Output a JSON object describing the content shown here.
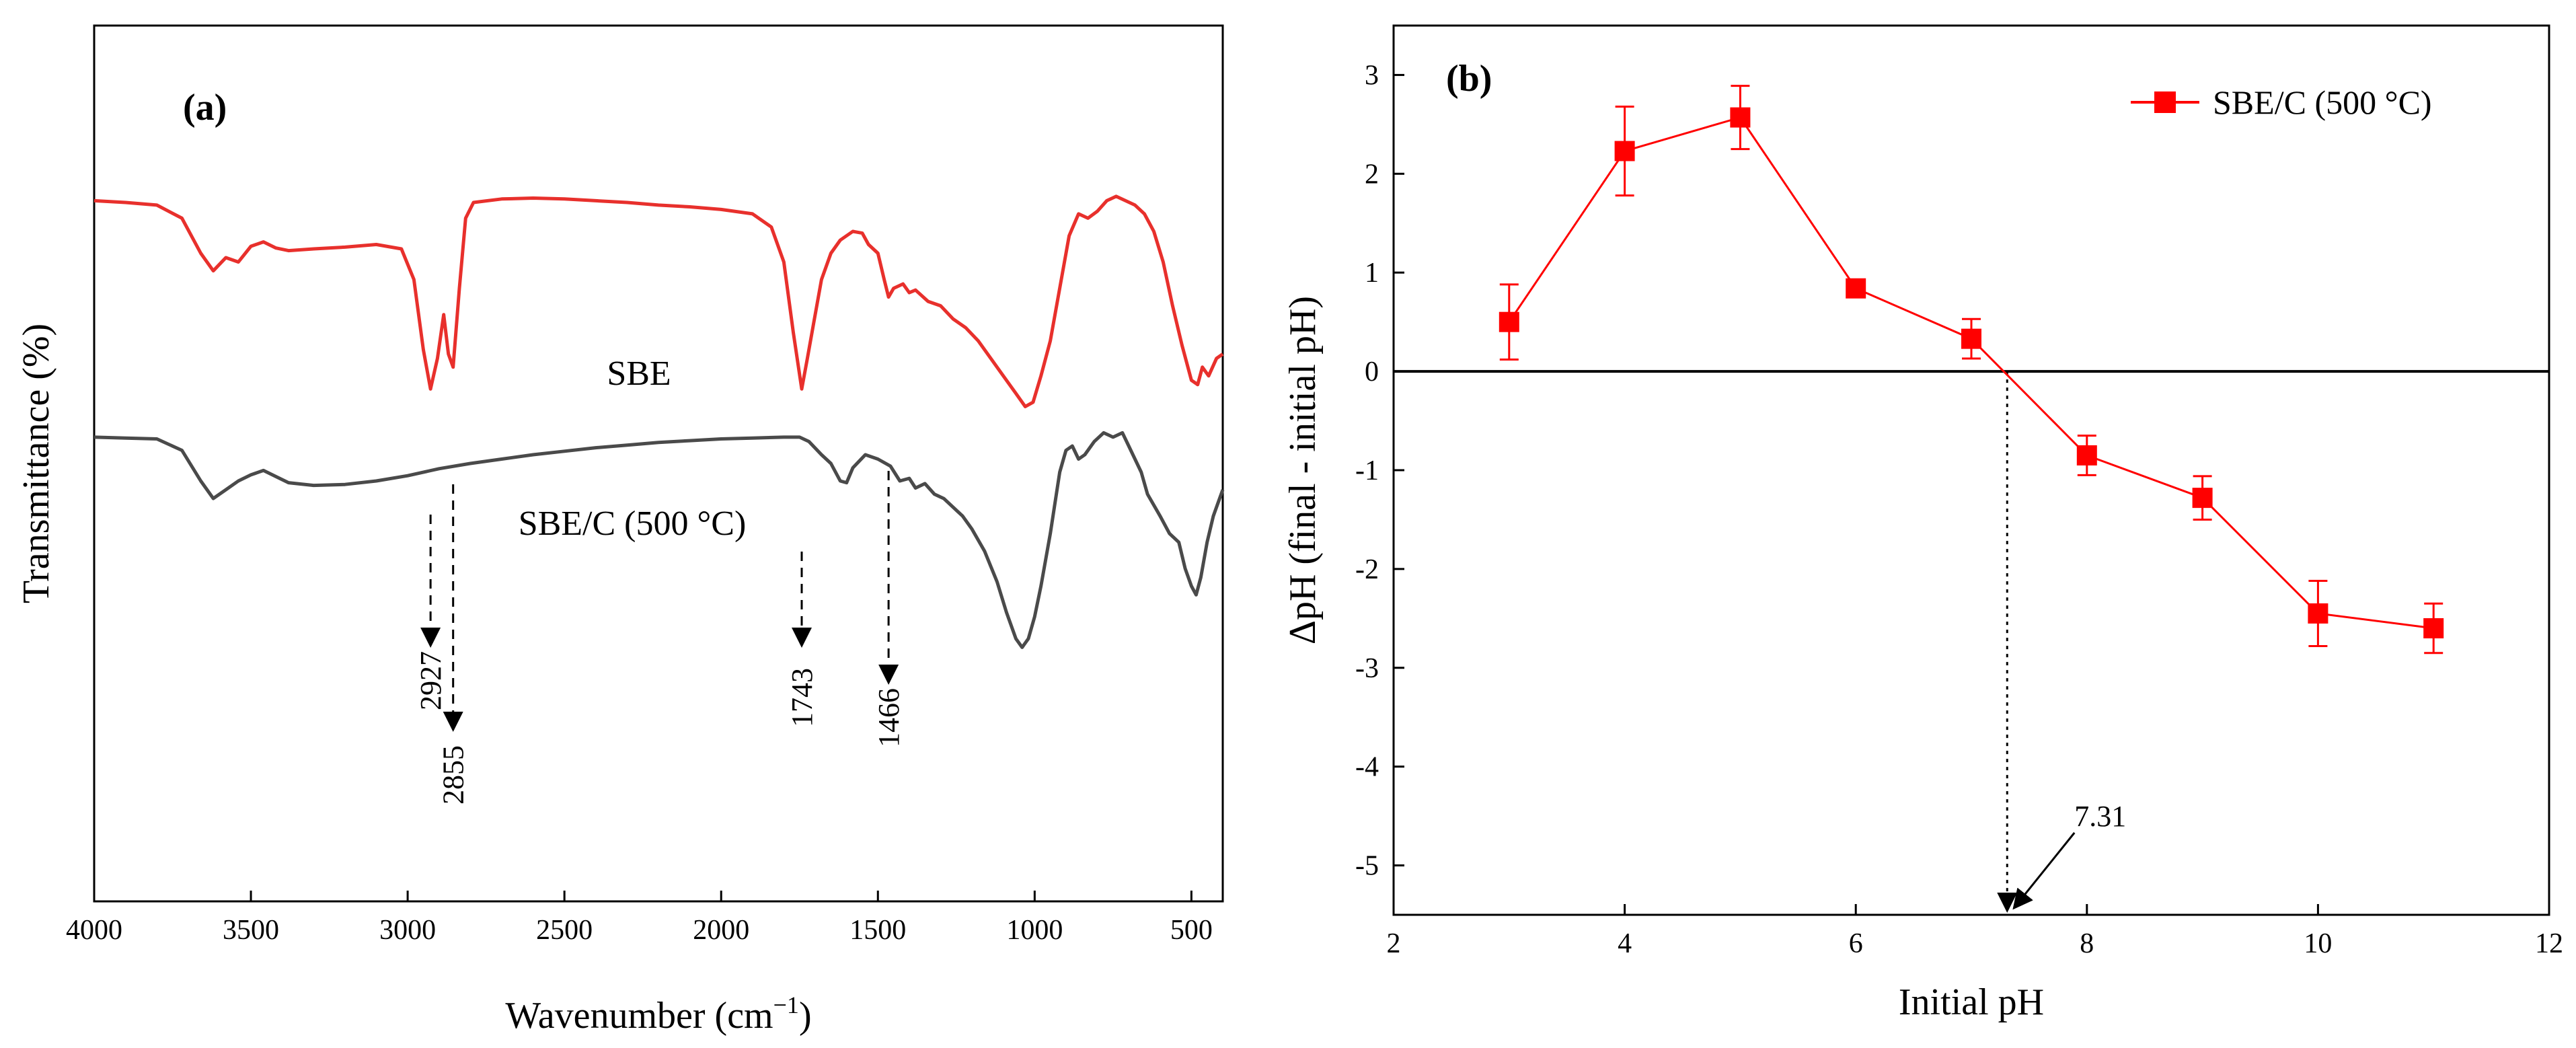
{
  "chart_data": [
    {
      "panel": "(a)",
      "type": "line",
      "title": "",
      "xlabel": "Wavenumber (cm",
      "xlabel_sup": "−1",
      "xlabel_end": ")",
      "ylabel": "Transmittance (%)",
      "xlim": [
        4000,
        400
      ],
      "xticks": [
        4000,
        3500,
        3000,
        2500,
        2000,
        1500,
        1000,
        500
      ],
      "yticks_shown": false,
      "ylim": [
        0,
        100
      ],
      "series": [
        {
          "name": "SBE",
          "color": "#e8302c",
          "points": [
            [
              4000,
              80
            ],
            [
              3900,
              79.8
            ],
            [
              3800,
              79.5
            ],
            [
              3720,
              78
            ],
            [
              3660,
              74
            ],
            [
              3620,
              72
            ],
            [
              3580,
              73.5
            ],
            [
              3540,
              73
            ],
            [
              3500,
              74.8
            ],
            [
              3460,
              75.3
            ],
            [
              3420,
              74.6
            ],
            [
              3380,
              74.3
            ],
            [
              3300,
              74.5
            ],
            [
              3200,
              74.7
            ],
            [
              3100,
              75
            ],
            [
              3020,
              74.5
            ],
            [
              2980,
              71
            ],
            [
              2950,
              63
            ],
            [
              2927,
              58.5
            ],
            [
              2905,
              62
            ],
            [
              2885,
              67
            ],
            [
              2870,
              62.5
            ],
            [
              2855,
              61
            ],
            [
              2835,
              70
            ],
            [
              2815,
              78
            ],
            [
              2790,
              79.8
            ],
            [
              2700,
              80.2
            ],
            [
              2600,
              80.3
            ],
            [
              2500,
              80.2
            ],
            [
              2400,
              80
            ],
            [
              2300,
              79.8
            ],
            [
              2200,
              79.5
            ],
            [
              2100,
              79.3
            ],
            [
              2000,
              79
            ],
            [
              1900,
              78.5
            ],
            [
              1840,
              77
            ],
            [
              1800,
              73
            ],
            [
              1770,
              65
            ],
            [
              1743,
              58.5
            ],
            [
              1725,
              62
            ],
            [
              1705,
              66
            ],
            [
              1680,
              71
            ],
            [
              1650,
              74
            ],
            [
              1620,
              75.5
            ],
            [
              1580,
              76.5
            ],
            [
              1550,
              76.3
            ],
            [
              1530,
              75
            ],
            [
              1500,
              74
            ],
            [
              1480,
              71
            ],
            [
              1466,
              69
            ],
            [
              1450,
              70
            ],
            [
              1420,
              70.5
            ],
            [
              1400,
              69.5
            ],
            [
              1380,
              69.8
            ],
            [
              1340,
              68.5
            ],
            [
              1300,
              68
            ],
            [
              1260,
              66.5
            ],
            [
              1220,
              65.5
            ],
            [
              1180,
              64
            ],
            [
              1140,
              62
            ],
            [
              1100,
              60
            ],
            [
              1060,
              58
            ],
            [
              1030,
              56.5
            ],
            [
              1005,
              57
            ],
            [
              980,
              60
            ],
            [
              950,
              64
            ],
            [
              920,
              70
            ],
            [
              890,
              76
            ],
            [
              860,
              78.5
            ],
            [
              830,
              78
            ],
            [
              800,
              78.8
            ],
            [
              770,
              80
            ],
            [
              740,
              80.5
            ],
            [
              710,
              80
            ],
            [
              680,
              79.5
            ],
            [
              650,
              78.5
            ],
            [
              620,
              76.5
            ],
            [
              590,
              73
            ],
            [
              560,
              68
            ],
            [
              530,
              63.5
            ],
            [
              500,
              59.5
            ],
            [
              480,
              59
            ],
            [
              465,
              61
            ],
            [
              445,
              60
            ],
            [
              420,
              62
            ],
            [
              400,
              62.5
            ]
          ]
        },
        {
          "name": "SBE/C (500 °C)",
          "color": "#4a4a4a",
          "points": [
            [
              4000,
              53
            ],
            [
              3900,
              52.9
            ],
            [
              3800,
              52.8
            ],
            [
              3720,
              51.5
            ],
            [
              3660,
              48
            ],
            [
              3620,
              46
            ],
            [
              3580,
              47
            ],
            [
              3540,
              48
            ],
            [
              3500,
              48.7
            ],
            [
              3460,
              49.2
            ],
            [
              3420,
              48.5
            ],
            [
              3380,
              47.8
            ],
            [
              3300,
              47.5
            ],
            [
              3200,
              47.6
            ],
            [
              3100,
              48
            ],
            [
              3000,
              48.6
            ],
            [
              2900,
              49.4
            ],
            [
              2800,
              50
            ],
            [
              2700,
              50.5
            ],
            [
              2600,
              51
            ],
            [
              2500,
              51.4
            ],
            [
              2400,
              51.8
            ],
            [
              2300,
              52.1
            ],
            [
              2200,
              52.4
            ],
            [
              2100,
              52.6
            ],
            [
              2000,
              52.8
            ],
            [
              1900,
              52.9
            ],
            [
              1800,
              53
            ],
            [
              1750,
              53
            ],
            [
              1720,
              52.5
            ],
            [
              1680,
              51
            ],
            [
              1650,
              50
            ],
            [
              1620,
              48
            ],
            [
              1600,
              47.8
            ],
            [
              1580,
              49.5
            ],
            [
              1540,
              51
            ],
            [
              1500,
              50.5
            ],
            [
              1460,
              49.7
            ],
            [
              1430,
              48
            ],
            [
              1400,
              48.3
            ],
            [
              1380,
              47.2
            ],
            [
              1350,
              47.7
            ],
            [
              1320,
              46.5
            ],
            [
              1290,
              46
            ],
            [
              1260,
              45
            ],
            [
              1230,
              44
            ],
            [
              1200,
              42.5
            ],
            [
              1160,
              40
            ],
            [
              1120,
              36.5
            ],
            [
              1090,
              33
            ],
            [
              1060,
              30
            ],
            [
              1040,
              29
            ],
            [
              1020,
              30
            ],
            [
              1000,
              32.5
            ],
            [
              980,
              36
            ],
            [
              950,
              42
            ],
            [
              920,
              49
            ],
            [
              900,
              51.5
            ],
            [
              880,
              52
            ],
            [
              860,
              50.5
            ],
            [
              840,
              51
            ],
            [
              810,
              52.5
            ],
            [
              780,
              53.5
            ],
            [
              750,
              53
            ],
            [
              720,
              53.5
            ],
            [
              700,
              52
            ],
            [
              680,
              50.5
            ],
            [
              660,
              49
            ],
            [
              640,
              46.5
            ],
            [
              600,
              44
            ],
            [
              570,
              42
            ],
            [
              540,
              41
            ],
            [
              520,
              38
            ],
            [
              500,
              36
            ],
            [
              485,
              35
            ],
            [
              470,
              37
            ],
            [
              450,
              41
            ],
            [
              430,
              44
            ],
            [
              410,
              46
            ],
            [
              400,
              47
            ]
          ]
        }
      ],
      "annotations": [
        {
          "label": "2927",
          "x": 2927
        },
        {
          "label": "2855",
          "x": 2855
        },
        {
          "label": "1743",
          "x": 1743
        },
        {
          "label": "1466",
          "x": 1466
        }
      ]
    },
    {
      "panel": "(b)",
      "type": "scatter",
      "title": "",
      "xlabel": "Initial pH",
      "ylabel": "ΔpH (final - initial pH)",
      "xlim": [
        2,
        12
      ],
      "ylim": [
        -5.5,
        3.5
      ],
      "xticks": [
        2,
        4,
        6,
        8,
        10,
        12
      ],
      "yticks": [
        3,
        2,
        1,
        0,
        -1,
        -2,
        -3,
        -4,
        -5
      ],
      "legend": "top-right",
      "series": [
        {
          "name": "SBE/C (500 °C)",
          "color": "#ff0000",
          "x": [
            3,
            4,
            5,
            6,
            7,
            8,
            9,
            10,
            11
          ],
          "y": [
            0.5,
            2.23,
            2.57,
            0.84,
            0.33,
            -0.85,
            -1.28,
            -2.45,
            -2.6
          ],
          "error": [
            0.38,
            0.45,
            0.32,
            0.05,
            0.2,
            0.2,
            0.22,
            0.33,
            0.25
          ]
        }
      ],
      "zero_line": 0,
      "pzc": {
        "value": 7.31,
        "label": "7.31"
      }
    }
  ]
}
